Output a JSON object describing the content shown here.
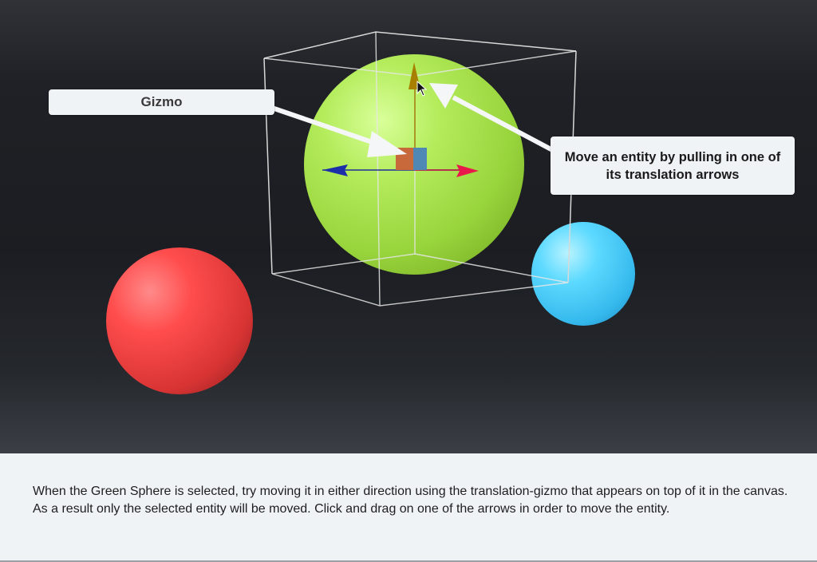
{
  "scene": {
    "entities": [
      {
        "name": "Green Sphere",
        "color": "#a9e84f",
        "selected": true
      },
      {
        "name": "Red Sphere",
        "color": "#ff4a4a",
        "selected": false
      },
      {
        "name": "Blue Sphere",
        "color": "#4fd4ff",
        "selected": false
      }
    ],
    "gizmo": {
      "axis_colors": {
        "x": "#e8194a",
        "y": "#a87f00",
        "z": "#1c2ea8"
      },
      "plane_colors": {
        "xy": "#c86a3a",
        "yz": "#4a86b4"
      }
    }
  },
  "callouts": {
    "gizmo_label": "Gizmo",
    "move_label": "Move an entity by pulling in one of its translation arrows"
  },
  "instructions": {
    "text": "When the Green Sphere is selected, try moving it in either direction using the translation-gizmo that appears on top of it in the canvas. As a result only the selected entity will be moved. Click and drag on one of the arrows in order to move the entity."
  },
  "icons": {
    "cursor": "mouse-pointer-icon"
  }
}
